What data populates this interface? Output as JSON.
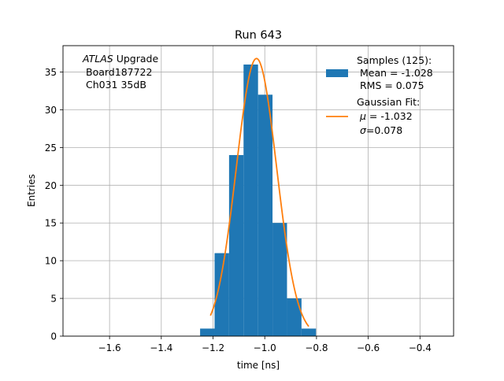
{
  "chart_data": {
    "type": "bar",
    "title": "Run 643",
    "xlabel": "time [ns]",
    "ylabel": "Entries",
    "xlim": [
      -1.78,
      -0.27
    ],
    "ylim": [
      0,
      38.5
    ],
    "grid": true,
    "xticks": [
      -1.6,
      -1.4,
      -1.2,
      -1.0,
      -0.8,
      -0.6,
      -0.4
    ],
    "xtick_labels": [
      "−1.6",
      "−1.4",
      "−1.2",
      "−1.0",
      "−0.8",
      "−0.6",
      "−0.4"
    ],
    "yticks": [
      0,
      5,
      10,
      15,
      20,
      25,
      30,
      35
    ],
    "ytick_labels": [
      "0",
      "5",
      "10",
      "15",
      "20",
      "25",
      "30",
      "35"
    ],
    "annotation": {
      "line1_italic": "ATLAS",
      "line1_rest": " Upgrade",
      "line2": "Board187722",
      "line3": "Ch031 35dB"
    },
    "histogram": {
      "color": "#1f77b4",
      "bin_edges": [
        -1.25,
        -1.194,
        -1.138,
        -1.082,
        -1.026,
        -0.97,
        -0.914,
        -0.858,
        -0.802
      ],
      "counts": [
        1,
        11,
        24,
        36,
        32,
        15,
        5,
        1
      ]
    },
    "fit": {
      "color": "#ff7f0e",
      "mu": -1.032,
      "sigma": 0.078,
      "amplitude": 36.8,
      "x_range": [
        -1.21,
        -0.83
      ]
    },
    "legend": {
      "placement": "top-right",
      "samples_title": "Samples (125):",
      "samples_mean": " Mean = -1.028",
      "samples_rms": " RMS = 0.075",
      "fit_title": "Gaussian Fit:",
      "fit_mu_symbol": "μ",
      "fit_mu_text": " = -1.032",
      "fit_sigma_symbol": "σ",
      "fit_sigma_text": "=0.078"
    }
  }
}
